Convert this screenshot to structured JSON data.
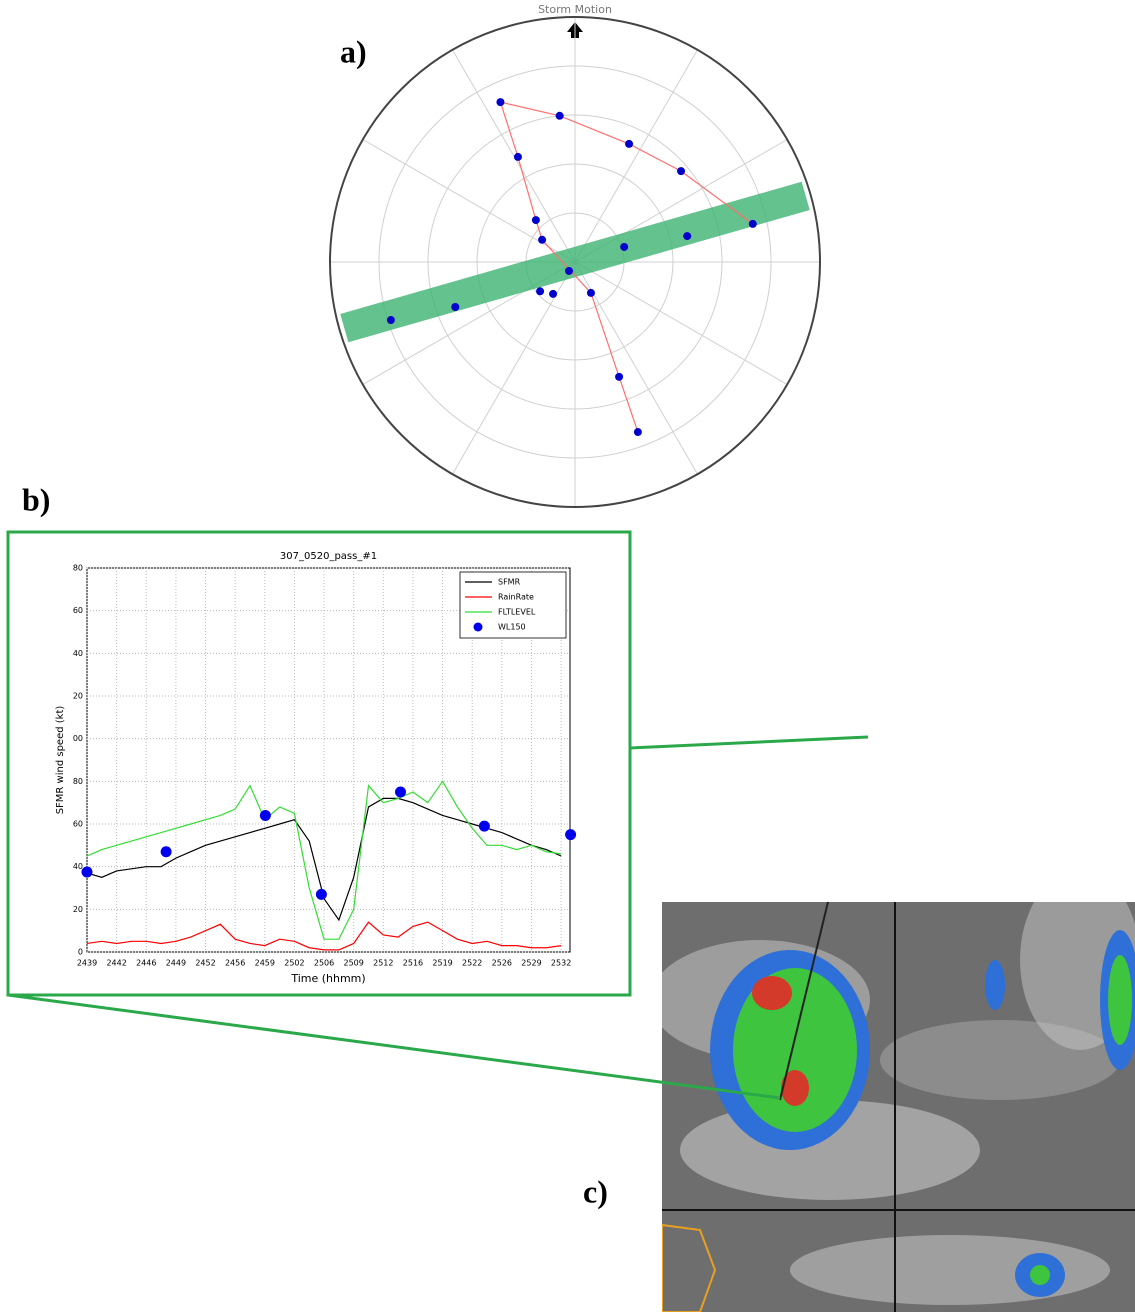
{
  "panel_labels": [
    "a)",
    "b)",
    "c)"
  ],
  "chart_data": [
    {
      "type": "polar_scatter",
      "title": "Storm Motion",
      "rlim": [
        0,
        5
      ],
      "rticks": [
        1,
        2,
        3,
        4,
        5
      ],
      "thetaticks": [
        0,
        30,
        60,
        90,
        120,
        150,
        180,
        210,
        240,
        270,
        300,
        330
      ],
      "grid": true,
      "band": {
        "theta": 74,
        "width": 0.6,
        "color": "#3cb371"
      },
      "series": [
        {
          "color": "#0000cc",
          "line_color": "#ff6f6f",
          "connected": true,
          "theta": [
            77.9,
            49.4,
            24.6,
            354,
            335,
            331.5,
            317,
            304,
            152.7,
            159,
            159.7
          ],
          "r": [
            3.71,
            2.85,
            2.65,
            3.0,
            3.6,
            2.44,
            1.17,
            0.81,
            0.71,
            2.51,
            3.7
          ]
        },
        {
          "color": "#0000cc",
          "connected": false,
          "theta": [
            73,
            77,
            213.7,
            230,
            214.5,
            249.4,
            252.5
          ],
          "r": [
            1.05,
            2.35,
            0.22,
            0.93,
            0.79,
            2.61,
            3.94
          ]
        }
      ]
    },
    {
      "type": "line",
      "title": "307_0520_pass_#1",
      "xlabel": "Time (hhmm)",
      "ylabel": "SFMR wind speed (kt)",
      "xlim": [
        0,
        16.3
      ],
      "ylim": [
        0,
        180
      ],
      "grid": true,
      "legend": "upper right",
      "xticks": [
        {
          "value": 0,
          "label": "2439"
        },
        {
          "value": 1,
          "label": "2442"
        },
        {
          "value": 2,
          "label": "2446"
        },
        {
          "value": 3,
          "label": "2449"
        },
        {
          "value": 4,
          "label": "2452"
        },
        {
          "value": 5,
          "label": "2456"
        },
        {
          "value": 6,
          "label": "2459"
        },
        {
          "value": 7,
          "label": "2502"
        },
        {
          "value": 8,
          "label": "2506"
        },
        {
          "value": 9,
          "label": "2509"
        },
        {
          "value": 10,
          "label": "2512"
        },
        {
          "value": 11,
          "label": "2516"
        },
        {
          "value": 12,
          "label": "2519"
        },
        {
          "value": 13,
          "label": "2522"
        },
        {
          "value": 14,
          "label": "2526"
        },
        {
          "value": 15,
          "label": "2529"
        },
        {
          "value": 16,
          "label": "2532"
        }
      ],
      "yticks": [
        0,
        20,
        40,
        60,
        80,
        {
          "value": 100,
          "label": "00"
        },
        {
          "value": 120,
          "label": "20"
        },
        {
          "value": 140,
          "label": "40"
        },
        {
          "value": 160,
          "label": "60"
        },
        {
          "value": 180,
          "label": "80"
        }
      ],
      "series": [
        {
          "name": "SFMR",
          "color": "#000000",
          "x": [
            0,
            0.5,
            1,
            1.5,
            2,
            2.5,
            3,
            3.5,
            4,
            4.5,
            5,
            5.5,
            6,
            6.5,
            7,
            7.5,
            8,
            8.5,
            9,
            9.5,
            10,
            10.5,
            11,
            11.5,
            12,
            12.5,
            13,
            13.5,
            14,
            14.5,
            15,
            15.5,
            16
          ],
          "values": [
            37,
            35,
            38,
            39,
            40,
            40,
            44,
            47,
            50,
            52,
            54,
            56,
            58,
            60,
            62,
            52,
            25,
            15,
            35,
            68,
            72,
            72,
            70,
            67,
            64,
            62,
            60,
            58,
            56,
            53,
            50,
            48,
            45
          ]
        },
        {
          "name": "RainRate",
          "color": "#ff0000",
          "x": [
            0,
            0.5,
            1,
            1.5,
            2,
            2.5,
            3,
            3.5,
            4,
            4.5,
            5,
            5.5,
            6,
            6.5,
            7,
            7.5,
            8,
            8.5,
            9,
            9.5,
            10,
            10.5,
            11,
            11.5,
            12,
            12.5,
            13,
            13.5,
            14,
            14.5,
            15,
            15.5,
            16
          ],
          "values": [
            4,
            5,
            4,
            5,
            5,
            4,
            5,
            7,
            10,
            13,
            6,
            4,
            3,
            6,
            5,
            2,
            1,
            1,
            4,
            14,
            8,
            7,
            12,
            14,
            10,
            6,
            4,
            5,
            3,
            3,
            2,
            2,
            3
          ]
        },
        {
          "name": "FLTLEVEL",
          "color": "#33dd33",
          "x": [
            0,
            0.5,
            1,
            1.5,
            2,
            2.5,
            3,
            3.5,
            4,
            4.5,
            5,
            5.5,
            6,
            6.5,
            7,
            7.5,
            8,
            8.5,
            9,
            9.5,
            10,
            10.5,
            11,
            11.5,
            12,
            12.5,
            13,
            13.5,
            14,
            14.5,
            15,
            15.5,
            16
          ],
          "values": [
            45,
            48,
            50,
            52,
            54,
            56,
            58,
            60,
            62,
            64,
            67,
            78,
            62,
            68,
            65,
            30,
            6,
            6,
            20,
            78,
            70,
            72,
            75,
            70,
            80,
            68,
            58,
            50,
            50,
            48,
            50,
            47,
            46
          ]
        },
        {
          "name": "WL150",
          "color": "#0000ee",
          "marker": "dot",
          "x": [
            0,
            2.67,
            6.02,
            7.91,
            10.58,
            13.41,
            16.32
          ],
          "values": [
            37.5,
            47,
            64,
            27,
            75,
            59,
            55
          ]
        }
      ]
    }
  ]
}
